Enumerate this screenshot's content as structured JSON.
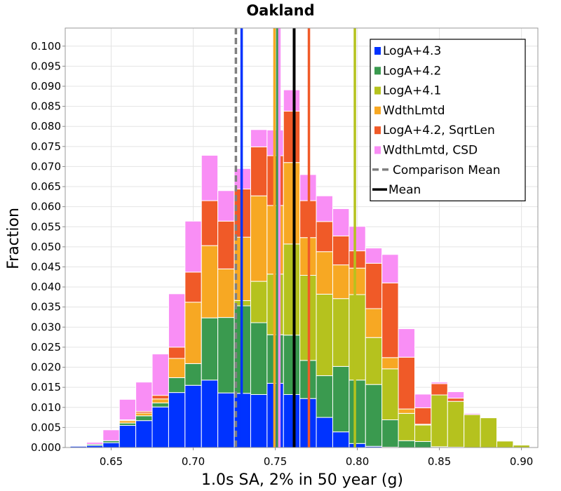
{
  "chart_data": {
    "type": "bar",
    "title": "Oakland",
    "xlabel": "1.0s SA, 2% in 50 year (g)",
    "ylabel": "Fraction",
    "xlim": [
      0.622,
      0.91
    ],
    "ylim": [
      0.0,
      0.1045
    ],
    "xticks": [
      "0.65",
      "0.70",
      "0.75",
      "0.80",
      "0.85",
      "0.90"
    ],
    "yticks": [
      "0.000",
      "0.005",
      "0.010",
      "0.015",
      "0.020",
      "0.025",
      "0.030",
      "0.035",
      "0.040",
      "0.045",
      "0.050",
      "0.055",
      "0.060",
      "0.065",
      "0.070",
      "0.075",
      "0.080",
      "0.085",
      "0.090",
      "0.095",
      "0.100"
    ],
    "bin_width": 0.01,
    "bin_left": [
      0.625,
      0.635,
      0.645,
      0.655,
      0.665,
      0.675,
      0.685,
      0.695,
      0.705,
      0.715,
      0.725,
      0.735,
      0.745,
      0.755,
      0.765,
      0.775,
      0.785,
      0.795,
      0.805,
      0.815,
      0.825,
      0.835,
      0.845,
      0.855,
      0.865,
      0.875,
      0.885,
      0.895
    ],
    "stacked": true,
    "grid": true,
    "legend_position": "top-right",
    "series": [
      {
        "name": "LogA+4.3",
        "color": "#0033ff",
        "values": [
          0.0003,
          0.0005,
          0.0012,
          0.0055,
          0.0067,
          0.0101,
          0.0137,
          0.0155,
          0.0168,
          0.0136,
          0.0135,
          0.0132,
          0.016,
          0.0132,
          0.0122,
          0.0075,
          0.0039,
          0.001,
          0.0003,
          0.0001,
          0.0,
          0.0,
          0.0,
          0.0,
          0.0,
          0.0,
          0.0,
          0.0
        ]
      },
      {
        "name": "LogA+4.2",
        "color": "#3a9a4f",
        "values": [
          0.0,
          0.0003,
          0.0005,
          0.0006,
          0.0012,
          0.001,
          0.0037,
          0.0054,
          0.0155,
          0.0188,
          0.0218,
          0.0179,
          0.0121,
          0.0148,
          0.0095,
          0.0104,
          0.0163,
          0.0158,
          0.0154,
          0.0068,
          0.0017,
          0.0015,
          0.0002,
          0.0001,
          0.0,
          0.0,
          0.0,
          0.0
        ]
      },
      {
        "name": "LogA+4.1",
        "color": "#b5c21e",
        "values": [
          0.0,
          0.0,
          0.0,
          0.0,
          0.0,
          0.0,
          0.0,
          0.0,
          0.0,
          0.0,
          0.0013,
          0.0103,
          0.0151,
          0.0227,
          0.0212,
          0.0203,
          0.0169,
          0.0213,
          0.0117,
          0.0127,
          0.0068,
          0.0041,
          0.0129,
          0.0114,
          0.0082,
          0.0074,
          0.0016,
          0.0006
        ]
      },
      {
        "name": "WdthLmtd",
        "color": "#f7a823",
        "values": [
          0.0,
          0.0,
          0.0,
          0.0006,
          0.0007,
          0.001,
          0.0048,
          0.0153,
          0.018,
          0.0121,
          0.0158,
          0.0213,
          0.0171,
          0.0203,
          0.0094,
          0.0106,
          0.0084,
          0.0066,
          0.0072,
          0.0028,
          0.0011,
          0.0002,
          0.0,
          0.0,
          0.0,
          0.0,
          0.0,
          0.0
        ]
      },
      {
        "name": "LogA+4.2, SqrtLen",
        "color": "#f05a28",
        "values": [
          0.0,
          0.0,
          0.0,
          0.0002,
          0.0004,
          0.0009,
          0.0028,
          0.0075,
          0.0112,
          0.0119,
          0.012,
          0.0122,
          0.0124,
          0.0128,
          0.0092,
          0.0075,
          0.0072,
          0.0043,
          0.0113,
          0.0186,
          0.0129,
          0.0041,
          0.0028,
          0.0008,
          0.0,
          0.0,
          0.0,
          0.0
        ]
      },
      {
        "name": "WdthLmtd, CSD",
        "color": "#f98ef5",
        "values": [
          0.0,
          0.0005,
          0.0027,
          0.0051,
          0.0073,
          0.0103,
          0.0133,
          0.0127,
          0.0113,
          0.0076,
          0.0051,
          0.0043,
          0.0064,
          0.0053,
          0.0065,
          0.0064,
          0.0068,
          0.0061,
          0.0038,
          0.0071,
          0.0071,
          0.0034,
          0.0004,
          0.0016,
          0.0003,
          0.0,
          0.0,
          0.0
        ]
      }
    ],
    "vertical_lines": [
      {
        "series": "LogA+4.3",
        "x": 0.7295,
        "color": "#0033ff",
        "dashed": false
      },
      {
        "series": "LogA+4.2",
        "x": 0.7512,
        "color": "#3a9a4f",
        "dashed": false
      },
      {
        "series": "LogA+4.1",
        "x": 0.7985,
        "color": "#b5c21e",
        "dashed": false
      },
      {
        "series": "WdthLmtd",
        "x": 0.7495,
        "color": "#f7a823",
        "dashed": false
      },
      {
        "series": "LogA+4.2, SqrtLen",
        "x": 0.7705,
        "color": "#f05a28",
        "dashed": false
      },
      {
        "series": "WdthLmtd, CSD",
        "x": 0.7525,
        "color": "#f98ef5",
        "dashed": false
      },
      {
        "series": "Comparison Mean",
        "x": 0.726,
        "color": "#808080",
        "dashed": true
      },
      {
        "series": "Mean",
        "x": 0.7615,
        "color": "#000000",
        "dashed": false
      }
    ],
    "legend": [
      {
        "label": "LogA+4.3",
        "color": "#0033ff",
        "marker": "square"
      },
      {
        "label": "LogA+4.2",
        "color": "#3a9a4f",
        "marker": "square"
      },
      {
        "label": "LogA+4.1",
        "color": "#b5c21e",
        "marker": "square"
      },
      {
        "label": "WdthLmtd",
        "color": "#f7a823",
        "marker": "square"
      },
      {
        "label": "LogA+4.2, SqrtLen",
        "color": "#f05a28",
        "marker": "square"
      },
      {
        "label": "WdthLmtd, CSD",
        "color": "#f98ef5",
        "marker": "square"
      },
      {
        "label": "Comparison Mean",
        "color": "#808080",
        "marker": "dashed-line"
      },
      {
        "label": "Mean",
        "color": "#000000",
        "marker": "line"
      }
    ]
  }
}
